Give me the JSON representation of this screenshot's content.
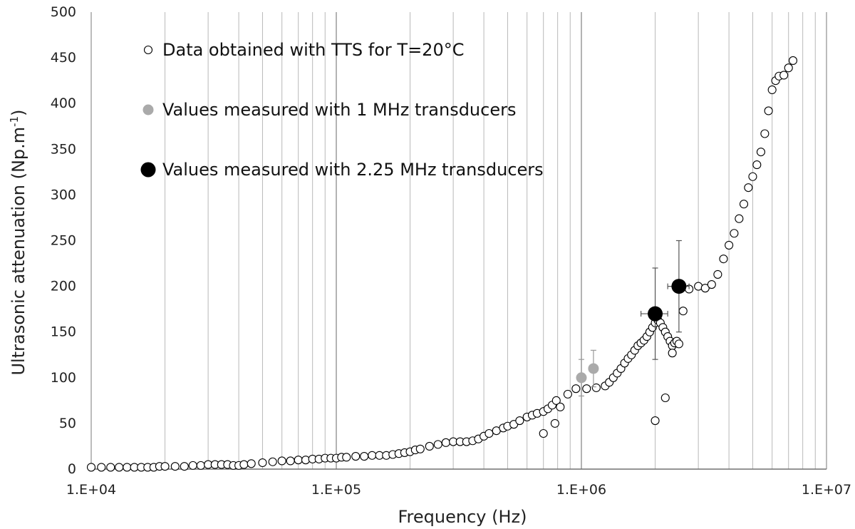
{
  "chart_data": {
    "type": "scatter",
    "xlabel": "Frequency (Hz)",
    "ylabel": "Ultrasonic attenuation (Np.m",
    "ylabel_sup": "-1",
    "ylabel_end": ")",
    "xscale": "log",
    "xlim": [
      10000,
      10000000
    ],
    "ylim": [
      0,
      500
    ],
    "x_tick_labels": [
      "1.E+04",
      "1.E+05",
      "1.E+06",
      "1.E+07"
    ],
    "x_tick_values": [
      10000,
      100000,
      1000000,
      10000000
    ],
    "y_tick_values": [
      0,
      50,
      100,
      150,
      200,
      250,
      300,
      350,
      400,
      450,
      500
    ],
    "y_tick_labels": [
      "0",
      "50",
      "100",
      "150",
      "200",
      "250",
      "300",
      "350",
      "400",
      "450",
      "500"
    ],
    "grid": "vertical",
    "legend_position": "top-left",
    "series": [
      {
        "name": "Data obtained with TTS for T=20°C",
        "marker": "open-circle",
        "color": "#000000",
        "points": [
          [
            10000,
            2
          ],
          [
            11000,
            2
          ],
          [
            12000,
            2
          ],
          [
            13000,
            2
          ],
          [
            14000,
            2
          ],
          [
            15000,
            2
          ],
          [
            16000,
            2
          ],
          [
            17000,
            2
          ],
          [
            18000,
            2
          ],
          [
            19000,
            3
          ],
          [
            20000,
            3
          ],
          [
            22000,
            3
          ],
          [
            24000,
            3
          ],
          [
            26000,
            4
          ],
          [
            28000,
            4
          ],
          [
            30000,
            5
          ],
          [
            32000,
            5
          ],
          [
            34000,
            5
          ],
          [
            36000,
            5
          ],
          [
            38000,
            4
          ],
          [
            40000,
            4
          ],
          [
            42000,
            5
          ],
          [
            45000,
            6
          ],
          [
            50000,
            7
          ],
          [
            55000,
            8
          ],
          [
            60000,
            9
          ],
          [
            65000,
            9
          ],
          [
            70000,
            10
          ],
          [
            75000,
            10
          ],
          [
            80000,
            11
          ],
          [
            85000,
            11
          ],
          [
            90000,
            12
          ],
          [
            95000,
            12
          ],
          [
            100000,
            12
          ],
          [
            105000,
            13
          ],
          [
            110000,
            13
          ],
          [
            120000,
            14
          ],
          [
            130000,
            14
          ],
          [
            140000,
            15
          ],
          [
            150000,
            15
          ],
          [
            160000,
            15
          ],
          [
            170000,
            16
          ],
          [
            180000,
            17
          ],
          [
            190000,
            18
          ],
          [
            200000,
            19
          ],
          [
            210000,
            21
          ],
          [
            220000,
            22
          ],
          [
            240000,
            25
          ],
          [
            260000,
            27
          ],
          [
            280000,
            29
          ],
          [
            300000,
            30
          ],
          [
            320000,
            30
          ],
          [
            340000,
            30
          ],
          [
            360000,
            31
          ],
          [
            380000,
            33
          ],
          [
            400000,
            36
          ],
          [
            420000,
            39
          ],
          [
            450000,
            42
          ],
          [
            480000,
            45
          ],
          [
            500000,
            47
          ],
          [
            530000,
            49
          ],
          [
            560000,
            53
          ],
          [
            600000,
            57
          ],
          [
            630000,
            59
          ],
          [
            660000,
            61
          ],
          [
            700000,
            63
          ],
          [
            730000,
            66
          ],
          [
            760000,
            70
          ],
          [
            790000,
            75
          ],
          [
            700000,
            39
          ],
          [
            780000,
            50
          ],
          [
            820000,
            68
          ],
          [
            880000,
            82
          ],
          [
            950000,
            88
          ],
          [
            1050000,
            88
          ],
          [
            1150000,
            89
          ],
          [
            1250000,
            91
          ],
          [
            1300000,
            95
          ],
          [
            1350000,
            100
          ],
          [
            1400000,
            105
          ],
          [
            1450000,
            110
          ],
          [
            1500000,
            116
          ],
          [
            1550000,
            121
          ],
          [
            1600000,
            125
          ],
          [
            1650000,
            130
          ],
          [
            1700000,
            135
          ],
          [
            1750000,
            138
          ],
          [
            1800000,
            141
          ],
          [
            1850000,
            145
          ],
          [
            1900000,
            150
          ],
          [
            1950000,
            155
          ],
          [
            2000000,
            160
          ],
          [
            2050000,
            163
          ],
          [
            2100000,
            160
          ],
          [
            2150000,
            155
          ],
          [
            2200000,
            150
          ],
          [
            2250000,
            145
          ],
          [
            2300000,
            140
          ],
          [
            2350000,
            135
          ],
          [
            2400000,
            138
          ],
          [
            2450000,
            140
          ],
          [
            2500000,
            137
          ],
          [
            2000000,
            53
          ],
          [
            2200000,
            78
          ],
          [
            2350000,
            127
          ],
          [
            2600000,
            173
          ],
          [
            2750000,
            197
          ],
          [
            3000000,
            200
          ],
          [
            3200000,
            198
          ],
          [
            3400000,
            202
          ],
          [
            3600000,
            213
          ],
          [
            3800000,
            230
          ],
          [
            4000000,
            245
          ],
          [
            4200000,
            258
          ],
          [
            4400000,
            274
          ],
          [
            4600000,
            290
          ],
          [
            4800000,
            308
          ],
          [
            5000000,
            320
          ],
          [
            5200000,
            333
          ],
          [
            5400000,
            347
          ],
          [
            5600000,
            367
          ],
          [
            5800000,
            392
          ],
          [
            6000000,
            415
          ],
          [
            6200000,
            425
          ],
          [
            6400000,
            430
          ],
          [
            6700000,
            431
          ],
          [
            7000000,
            439
          ],
          [
            7300000,
            447
          ]
        ]
      },
      {
        "name": "Values measured with 1 MHz transducers",
        "marker": "filled-circle",
        "color": "#aaaaaa",
        "points": [
          {
            "x": 1000000,
            "y": 100,
            "yerr": 20
          },
          {
            "x": 1120000,
            "y": 110,
            "yerr": 20
          }
        ]
      },
      {
        "name": "Values measured with 2.25 MHz transducers",
        "marker": "filled-circle-large",
        "color": "#000000",
        "points": [
          {
            "x": 2000000,
            "y": 170,
            "yerr": 50,
            "xerr_lo": 1750000,
            "xerr_hi": 2250000
          },
          {
            "x": 2500000,
            "y": 200,
            "yerr": 50,
            "xerr_lo": 2250000,
            "xerr_hi": 2750000
          }
        ]
      }
    ]
  }
}
